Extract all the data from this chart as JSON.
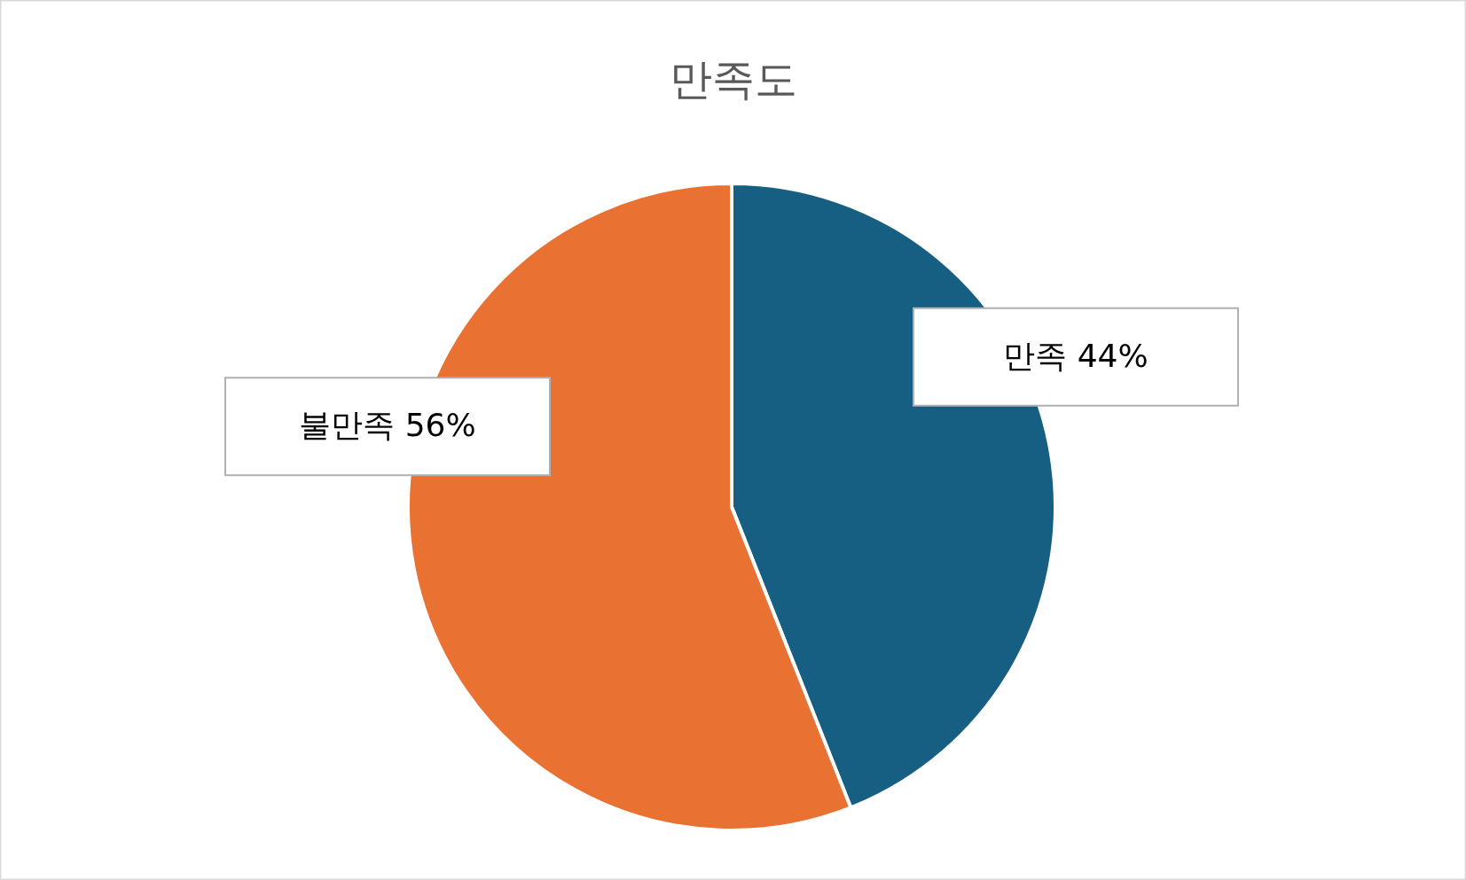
{
  "chart_data": {
    "type": "pie",
    "title": "만족도",
    "categories": [
      "만족",
      "불만족"
    ],
    "values": [
      44,
      56
    ],
    "colors": [
      "#175f82",
      "#e97132"
    ],
    "value_labels": [
      "44%",
      "56%"
    ]
  }
}
